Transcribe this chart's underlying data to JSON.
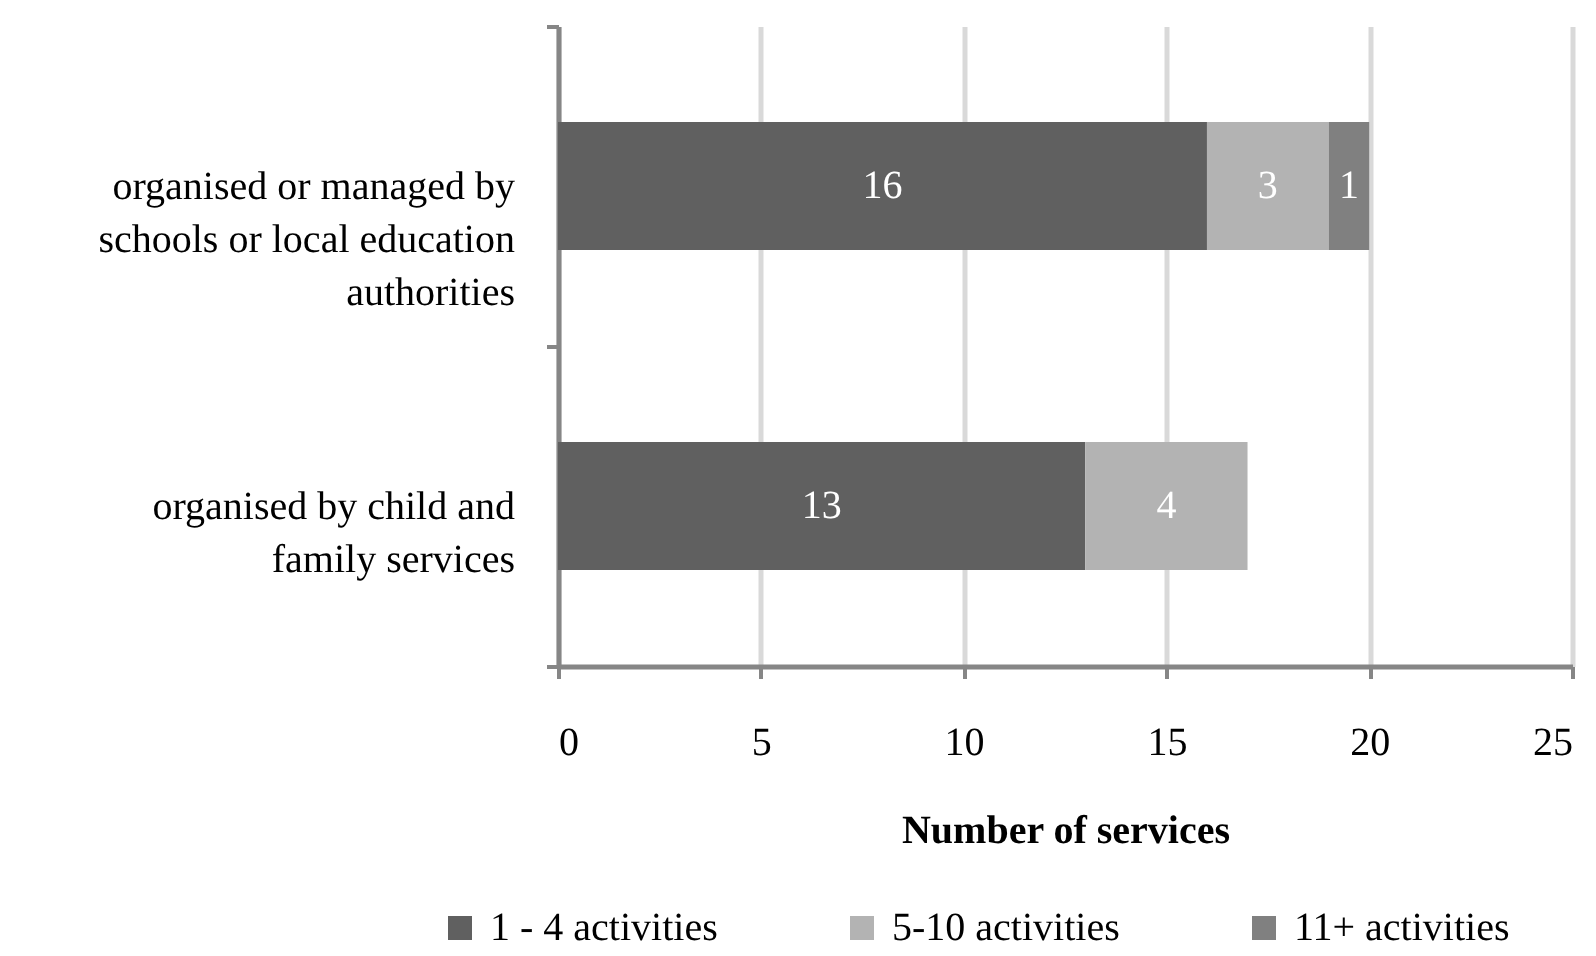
{
  "chart_data": {
    "type": "bar",
    "orientation": "horizontal",
    "stacked": true,
    "xlabel": "Number of services",
    "categories": [
      "organised or managed by schools or local education authorities",
      "organised by child and family services"
    ],
    "series": [
      {
        "name": "1 - 4 activities",
        "color": "#606060",
        "values": [
          16,
          13
        ]
      },
      {
        "name": "5-10 activities",
        "color": "#b3b3b3",
        "values": [
          3,
          4
        ]
      },
      {
        "name": "11+ activities",
        "color": "#808080",
        "values": [
          1,
          null
        ]
      }
    ],
    "xlim": [
      0,
      25
    ],
    "xticks": [
      0,
      5,
      10,
      15,
      20,
      25
    ],
    "grid": "x",
    "legend": "bottom",
    "data_labels": true
  }
}
